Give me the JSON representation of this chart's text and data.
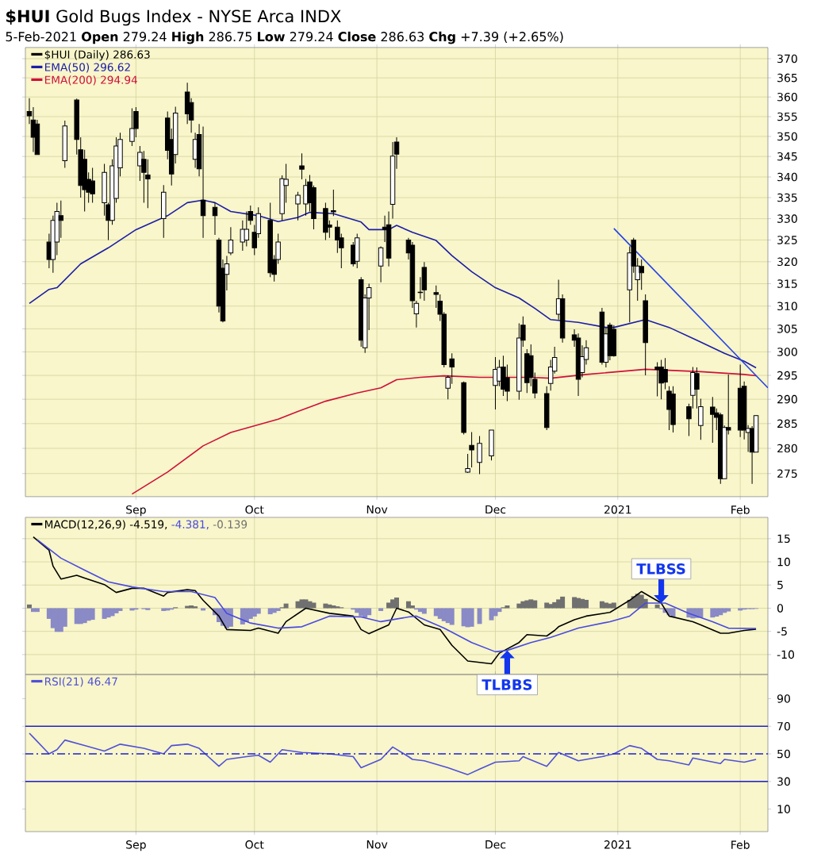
{
  "chart_data": [
    {
      "type": "candlestick",
      "title": "**$HUI** Gold Bugs Index - NYSE Arca INDX",
      "subtitle": "5-Feb-2021   **Open** 279.24 **High** 286.75 **Low** 279.24 **Close** 286.63 **Chg** +7.39 (+2.65%)",
      "xlim": [
        "2020-08-04",
        "2021-02-08"
      ],
      "xticks": [
        {
          "value": "2020-09-01",
          "label": "Sep"
        },
        {
          "value": "2020-10-01",
          "label": "Oct"
        },
        {
          "value": "2020-11-01",
          "label": "Nov"
        },
        {
          "value": "2020-12-01",
          "label": "Dec"
        },
        {
          "value": "2021-01-01",
          "label": "2021"
        },
        {
          "value": "2021-02-01",
          "label": "Feb"
        }
      ],
      "ylim": [
        270.5,
        373
      ],
      "yticks": [
        275,
        280,
        285,
        290,
        295,
        300,
        305,
        310,
        315,
        320,
        325,
        330,
        335,
        340,
        345,
        350,
        355,
        360,
        365,
        370
      ],
      "log": "y",
      "grid": true,
      "legend": "top left",
      "series": [
        {
          "name": "$HUI (Daily) 286.63",
          "color": "#000000",
          "x": [
            "2020-08-05",
            "2020-08-06",
            "2020-08-07",
            "2020-08-10",
            "2020-08-11",
            "2020-08-12",
            "2020-08-13",
            "2020-08-14",
            "2020-08-17",
            "2020-08-18",
            "2020-08-19",
            "2020-08-20",
            "2020-08-21",
            "2020-08-24",
            "2020-08-25",
            "2020-08-26",
            "2020-08-27",
            "2020-08-28",
            "2020-08-31",
            "2020-09-01",
            "2020-09-02",
            "2020-09-03",
            "2020-09-04",
            "2020-09-08",
            "2020-09-09",
            "2020-09-10",
            "2020-09-11",
            "2020-09-14",
            "2020-09-15",
            "2020-09-16",
            "2020-09-17",
            "2020-09-18",
            "2020-09-21",
            "2020-09-22",
            "2020-09-23",
            "2020-09-24",
            "2020-09-25",
            "2020-09-28",
            "2020-09-29",
            "2020-09-30",
            "2020-10-01",
            "2020-10-02",
            "2020-10-05",
            "2020-10-06",
            "2020-10-07",
            "2020-10-08",
            "2020-10-09",
            "2020-10-12",
            "2020-10-13",
            "2020-10-14",
            "2020-10-15",
            "2020-10-16",
            "2020-10-19",
            "2020-10-20",
            "2020-10-21",
            "2020-10-22",
            "2020-10-23",
            "2020-10-26",
            "2020-10-27",
            "2020-10-28",
            "2020-10-29",
            "2020-10-30",
            "2020-11-02",
            "2020-11-03",
            "2020-11-04",
            "2020-11-05",
            "2020-11-06",
            "2020-11-09",
            "2020-11-10",
            "2020-11-11",
            "2020-11-12",
            "2020-11-13",
            "2020-11-16",
            "2020-11-17",
            "2020-11-18",
            "2020-11-19",
            "2020-11-20",
            "2020-11-23",
            "2020-11-24",
            "2020-11-25",
            "2020-11-27",
            "2020-11-30",
            "2020-12-01",
            "2020-12-02",
            "2020-12-03",
            "2020-12-04",
            "2020-12-07",
            "2020-12-08",
            "2020-12-09",
            "2020-12-10",
            "2020-12-11",
            "2020-12-14",
            "2020-12-15",
            "2020-12-16",
            "2020-12-17",
            "2020-12-18",
            "2020-12-21",
            "2020-12-22",
            "2020-12-23",
            "2020-12-24",
            "2020-12-28",
            "2020-12-29",
            "2020-12-30",
            "2020-12-31",
            "2021-01-04",
            "2021-01-05",
            "2021-01-06",
            "2021-01-07",
            "2021-01-08",
            "2021-01-11",
            "2021-01-12",
            "2021-01-13",
            "2021-01-14",
            "2021-01-15",
            "2021-01-19",
            "2021-01-20",
            "2021-01-21",
            "2021-01-22",
            "2021-01-25",
            "2021-01-26",
            "2021-01-27",
            "2021-01-28",
            "2021-01-29",
            "2021-02-01",
            "2021-02-02",
            "2021-02-03",
            "2021-02-04",
            "2021-02-05"
          ],
          "ohlc": [
            [
              356.3,
              359.7,
              353.1,
              355.2
            ],
            [
              354.1,
              357.4,
              346.1,
              349.8
            ],
            [
              353.1,
              354.2,
              345.5,
              345.5
            ],
            [
              324.5,
              326.5,
              318.5,
              320.5
            ],
            [
              320.5,
              330.7,
              317.5,
              329.6
            ],
            [
              324.5,
              333.8,
              321.5,
              331.7
            ],
            [
              330.7,
              334.3,
              325.5,
              329.6
            ],
            [
              344.0,
              354.0,
              342.2,
              352.6
            ],
            [
              359.2,
              359.6,
              345.5,
              349.2
            ],
            [
              346.7,
              349.8,
              335.0,
              337.9
            ],
            [
              344.3,
              346.7,
              331.7,
              336.9
            ],
            [
              339.4,
              341.1,
              333.8,
              336.3
            ],
            [
              339.0,
              342.2,
              333.8,
              335.9
            ],
            [
              333.8,
              343.2,
              330.7,
              341.1
            ],
            [
              333.3,
              333.8,
              325.0,
              329.6
            ],
            [
              329.6,
              344.3,
              328.6,
              342.7
            ],
            [
              334.8,
              349.8,
              333.8,
              347.6
            ],
            [
              342.2,
              350.9,
              340.1,
              349.2
            ],
            [
              348.7,
              357.1,
              347.6,
              352.0
            ],
            [
              356.3,
              357.4,
              349.8,
              352.0
            ],
            [
              342.7,
              347.6,
              339.0,
              346.0
            ],
            [
              344.3,
              346.4,
              333.8,
              341.1
            ],
            [
              340.5,
              344.3,
              332.5,
              339.5
            ],
            [
              330.0,
              338.0,
              325.5,
              336.3
            ],
            [
              354.6,
              356.3,
              344.3,
              346.5
            ],
            [
              349.2,
              352.0,
              337.9,
              340.7
            ],
            [
              345.5,
              357.5,
              343.3,
              355.9
            ],
            [
              361.3,
              363.7,
              353.1,
              355.7
            ],
            [
              358.6,
              359.7,
              350.9,
              354.1
            ],
            [
              344.3,
              350.9,
              342.2,
              349.2
            ],
            [
              350.5,
              353.1,
              340.1,
              342.0
            ],
            [
              334.4,
              352.5,
              325.5,
              330.7
            ],
            [
              332.7,
              333.8,
              326.2,
              330.7
            ],
            [
              325.0,
              325.5,
              308.6,
              310.0
            ],
            [
              318.5,
              320.5,
              306.4,
              306.7
            ],
            [
              317.1,
              321.3,
              313.5,
              319.5
            ],
            [
              322.0,
              328.0,
              321.5,
              325.0
            ],
            [
              324.5,
              329.6,
              322.5,
              327.5
            ],
            [
              325.0,
              331.7,
              323.5,
              327.5
            ],
            [
              331.7,
              333.1,
              328.6,
              329.6
            ],
            [
              326.8,
              328.5,
              321.5,
              323.2
            ],
            [
              326.5,
              332.7,
              325.5,
              331.2
            ],
            [
              329.6,
              333.8,
              316.5,
              317.5
            ],
            [
              320.5,
              321.5,
              315.5,
              317.1
            ],
            [
              320.5,
              326.5,
              319.5,
              324.5
            ],
            [
              331.2,
              340.4,
              329.6,
              339.6
            ],
            [
              337.9,
              343.2,
              333.8,
              339.4
            ],
            [
              333.5,
              336.4,
              329.6,
              335.6
            ],
            [
              342.7,
              345.8,
              339.4,
              341.9
            ],
            [
              333.5,
              339.5,
              330.7,
              337.9
            ],
            [
              338.8,
              340.5,
              331.7,
              333.8
            ],
            [
              337.4,
              337.9,
              327.5,
              330.0
            ],
            [
              332.4,
              333.8,
              325.0,
              326.8
            ],
            [
              328.5,
              329.6,
              325.5,
              328.0
            ],
            [
              331.9,
              336.9,
              330.6,
              331.6
            ],
            [
              328.0,
              329.6,
              322.0,
              325.0
            ],
            [
              325.5,
              326.5,
              318.5,
              323.2
            ],
            [
              323.8,
              324.5,
              318.9,
              319.5
            ],
            [
              320.1,
              326.5,
              318.5,
              325.5
            ],
            [
              315.9,
              316.5,
              301.1,
              302.5
            ],
            [
              300.9,
              312.6,
              299.8,
              311.8
            ],
            [
              311.8,
              315.0,
              304.7,
              314.1
            ],
            [
              319.0,
              323.5,
              315.3,
              323.2
            ],
            [
              328.0,
              330.7,
              324.5,
              327.5
            ],
            [
              328.6,
              331.7,
              318.9,
              320.8
            ],
            [
              333.4,
              348.6,
              330.0,
              345.1
            ],
            [
              348.6,
              349.8,
              342.0,
              345.6
            ],
            [
              325.0,
              325.5,
              320.5,
              322.0
            ],
            [
              323.8,
              324.5,
              309.6,
              311.2
            ],
            [
              308.3,
              311.2,
              305.3,
              310.6
            ],
            [
              313.0,
              316.5,
              311.6,
              313.1
            ],
            [
              318.7,
              319.9,
              311.2,
              313.6
            ],
            [
              313.0,
              314.6,
              309.6,
              312.6
            ],
            [
              311.1,
              312.6,
              306.7,
              308.2
            ],
            [
              308.2,
              308.7,
              296.7,
              297.3
            ],
            [
              292.3,
              295.0,
              290.0,
              294.6
            ],
            [
              298.5,
              299.7,
              293.2,
              296.8
            ],
            [
              293.5,
              293.7,
              282.8,
              283.2
            ],
            [
              275.3,
              278.9,
              275.1,
              276.0
            ],
            [
              280.6,
              283.3,
              276.2,
              279.7
            ],
            [
              277.2,
              282.5,
              274.9,
              281.0
            ],
            [
              278.5,
              283.7,
              277.6,
              283.7
            ],
            [
              292.9,
              298.9,
              287.9,
              296.3
            ],
            [
              293.8,
              298.3,
              292.7,
              296.7
            ],
            [
              296.8,
              299.2,
              290.7,
              292.1
            ],
            [
              294.5,
              297.3,
              289.6,
              291.7
            ],
            [
              291.7,
              306.2,
              289.9,
              303.0
            ],
            [
              305.8,
              307.7,
              301.1,
              302.5
            ],
            [
              299.6,
              300.6,
              291.3,
              293.5
            ],
            [
              299.2,
              301.6,
              292.7,
              294.6
            ],
            [
              294.2,
              295.6,
              290.2,
              291.3
            ],
            [
              291.2,
              292.7,
              283.7,
              284.2
            ],
            [
              293.3,
              298.3,
              291.8,
              296.8
            ],
            [
              295.9,
              301.1,
              295.4,
              298.8
            ],
            [
              308.2,
              315.9,
              307.0,
              311.6
            ],
            [
              311.6,
              312.6,
              302.0,
              303.0
            ],
            [
              303.7,
              304.9,
              301.1,
              302.5
            ],
            [
              303.0,
              304.0,
              290.7,
              294.2
            ],
            [
              295.6,
              301.4,
              294.6,
              299.0
            ],
            [
              298.4,
              302.5,
              297.3,
              300.9
            ],
            [
              308.7,
              309.6,
              297.3,
              297.8
            ],
            [
              297.8,
              305.3,
              296.7,
              303.9
            ],
            [
              305.8,
              306.3,
              298.2,
              299.2
            ],
            [
              304.9,
              305.8,
              299.0,
              299.2
            ],
            [
              313.6,
              323.5,
              306.4,
              322.0
            ],
            [
              325.0,
              325.5,
              317.5,
              319.0
            ],
            [
              315.9,
              320.8,
              311.2,
              319.0
            ],
            [
              318.9,
              320.5,
              313.6,
              317.5
            ],
            [
              311.2,
              312.6,
              295.0,
              302.0
            ],
            [
              296.8,
              297.8,
              290.6,
              296.3
            ],
            [
              296.8,
              298.3,
              290.0,
              293.4
            ],
            [
              296.3,
              298.7,
              292.1,
              293.6
            ],
            [
              291.7,
              292.7,
              283.7,
              287.9
            ],
            [
              291.1,
              292.7,
              283.2,
              284.8
            ],
            [
              288.5,
              289.1,
              282.5,
              286.0
            ],
            [
              290.8,
              296.8,
              288.1,
              295.6
            ],
            [
              295.4,
              296.7,
              288.1,
              292.1
            ],
            [
              284.6,
              290.1,
              281.7,
              288.5
            ],
            [
              288.4,
              290.5,
              281.1,
              286.9
            ],
            [
              287.2,
              288.1,
              283.7,
              286.3
            ],
            [
              286.8,
              287.2,
              273.0,
              274.0
            ],
            [
              274.0,
              284.6,
              274.0,
              284.2
            ],
            [
              284.2,
              295.2,
              282.8,
              283.7
            ],
            [
              292.3,
              297.3,
              282.3,
              283.7
            ],
            [
              292.7,
              293.7,
              281.8,
              283.7
            ],
            [
              283.2,
              284.7,
              279.3,
              284.0
            ],
            [
              284.0,
              284.5,
              273.0,
              279.24
            ],
            [
              279.24,
              286.75,
              279.24,
              286.63
            ]
          ]
        },
        {
          "type": "line",
          "name": "EMA(50) 296.62",
          "color": "#1c1ca8",
          "x": [
            "2020-08-05",
            "2020-08-10",
            "2020-08-12",
            "2020-08-18",
            "2020-08-25",
            "2020-09-01",
            "2020-09-09",
            "2020-09-14",
            "2020-09-18",
            "2020-09-21",
            "2020-09-25",
            "2020-10-02",
            "2020-10-07",
            "2020-10-12",
            "2020-10-15",
            "2020-10-21",
            "2020-10-28",
            "2020-10-30",
            "2020-11-04",
            "2020-11-06",
            "2020-11-10",
            "2020-11-16",
            "2020-11-20",
            "2020-11-25",
            "2020-12-01",
            "2020-12-07",
            "2020-12-11",
            "2020-12-15",
            "2020-12-22",
            "2020-12-29",
            "2020-12-31",
            "2021-01-08",
            "2021-01-14",
            "2021-01-21",
            "2021-01-28",
            "2021-02-02",
            "2021-02-05"
          ],
          "values": [
            310.6,
            313.7,
            314.1,
            319.5,
            323.2,
            327.4,
            330.7,
            333.8,
            334.4,
            333.8,
            331.7,
            330.7,
            329.3,
            330.3,
            331.5,
            331.2,
            329.2,
            327.4,
            327.4,
            328.4,
            326.8,
            324.9,
            321.4,
            317.7,
            314.1,
            311.8,
            309.5,
            307.0,
            306.4,
            305.3,
            305.3,
            307.0,
            305.3,
            302.5,
            299.7,
            298.0,
            296.62
          ]
        },
        {
          "type": "line",
          "name": "EMA(200) 294.94",
          "color": "#d0103a",
          "x": [
            "2020-08-31",
            "2020-09-09",
            "2020-09-18",
            "2020-09-25",
            "2020-10-07",
            "2020-10-12",
            "2020-10-19",
            "2020-10-27",
            "2020-11-02",
            "2020-11-06",
            "2020-11-12",
            "2020-11-18",
            "2020-11-27",
            "2020-12-04",
            "2020-12-10",
            "2020-12-15",
            "2020-12-24",
            "2021-01-08",
            "2021-01-22",
            "2021-02-02",
            "2021-02-05"
          ],
          "values": [
            271.0,
            275.3,
            280.5,
            283.2,
            285.9,
            287.5,
            289.6,
            291.3,
            292.4,
            294.1,
            294.6,
            294.9,
            294.6,
            294.6,
            294.6,
            294.4,
            295.2,
            296.3,
            295.8,
            295.2,
            294.94
          ]
        },
        {
          "type": "line",
          "color": "#2442e6",
          "x": [
            "2020-12-31",
            "2021-02-08"
          ],
          "values": [
            327.7,
            292.4
          ]
        }
      ]
    },
    {
      "type": "line",
      "xlim": [
        "2020-08-04",
        "2021-02-08"
      ],
      "xticks": [
        {
          "value": "2020-09-01",
          "label": null
        },
        {
          "value": "2020-10-01",
          "label": null
        },
        {
          "value": "2020-11-01",
          "label": null
        },
        {
          "value": "2020-12-01",
          "label": null
        },
        {
          "value": "2021-01-01",
          "label": null
        },
        {
          "value": "2021-02-01",
          "label": null
        }
      ],
      "ylim": [
        -14.3,
        19.6
      ],
      "yticks": [
        -10,
        -5,
        0,
        5,
        10,
        15
      ],
      "tick_labels": "y",
      "grid": true,
      "legend": "top left",
      "series": [
        {
          "name": "MACD(12,26,9) -4.519,",
          "color": "#000000",
          "x": [
            "2020-08-06",
            "2020-08-10",
            "2020-08-11",
            "2020-08-13",
            "2020-08-17",
            "2020-08-19",
            "2020-08-24",
            "2020-08-27",
            "2020-08-31",
            "2020-09-03",
            "2020-09-08",
            "2020-09-09",
            "2020-09-14",
            "2020-09-16",
            "2020-09-18",
            "2020-09-22",
            "2020-09-24",
            "2020-09-30",
            "2020-10-02",
            "2020-10-07",
            "2020-10-09",
            "2020-10-14",
            "2020-10-20",
            "2020-10-26",
            "2020-10-28",
            "2020-10-30",
            "2020-11-04",
            "2020-11-06",
            "2020-11-09",
            "2020-11-13",
            "2020-11-17",
            "2020-11-20",
            "2020-11-24",
            "2020-11-30",
            "2020-12-02",
            "2020-12-07",
            "2020-12-09",
            "2020-12-14",
            "2020-12-16",
            "2020-12-17",
            "2020-12-21",
            "2020-12-24",
            "2020-12-30",
            "2021-01-04",
            "2021-01-07",
            "2021-01-12",
            "2021-01-14",
            "2021-01-20",
            "2021-01-22",
            "2021-01-27",
            "2021-01-29",
            "2021-02-02",
            "2021-02-05"
          ],
          "values": [
            15.4,
            12.5,
            9.1,
            6.3,
            7.1,
            6.5,
            5.1,
            3.4,
            4.3,
            4.3,
            2.6,
            3.4,
            4.0,
            3.8,
            1.7,
            -1.7,
            -4.6,
            -4.8,
            -4.3,
            -5.4,
            -2.9,
            0.0,
            -1.1,
            -1.7,
            -4.6,
            -5.5,
            -3.6,
            0.0,
            -0.8,
            -3.6,
            -4.6,
            -8.0,
            -11.4,
            -12.0,
            -9.7,
            -7.4,
            -5.7,
            -6.0,
            -4.8,
            -4.0,
            -2.5,
            -1.7,
            -0.9,
            1.7,
            3.6,
            1.1,
            -1.7,
            -2.9,
            -3.6,
            -5.4,
            -5.4,
            -4.8,
            -4.519
          ]
        },
        {
          "name": "-4.381,",
          "color": "#4a4ae0",
          "x": [
            "2020-08-07",
            "2020-08-13",
            "2020-08-19",
            "2020-08-25",
            "2020-08-31",
            "2020-09-08",
            "2020-09-15",
            "2020-09-21",
            "2020-09-24",
            "2020-09-30",
            "2020-10-07",
            "2020-10-13",
            "2020-10-20",
            "2020-10-28",
            "2020-11-02",
            "2020-11-09",
            "2020-11-11",
            "2020-11-18",
            "2020-11-25",
            "2020-12-01",
            "2020-12-04",
            "2020-12-10",
            "2020-12-15",
            "2020-12-22",
            "2020-12-30",
            "2021-01-04",
            "2021-01-08",
            "2021-01-13",
            "2021-01-19",
            "2021-01-25",
            "2021-01-29",
            "2021-02-05"
          ],
          "values": [
            14.8,
            10.8,
            8.2,
            5.7,
            4.6,
            3.6,
            3.6,
            2.3,
            -1.1,
            -3.2,
            -4.3,
            -4.0,
            -1.7,
            -1.9,
            -2.9,
            -1.9,
            -1.7,
            -4.3,
            -7.4,
            -9.4,
            -9.1,
            -7.4,
            -6.3,
            -4.3,
            -2.9,
            -1.7,
            1.1,
            1.1,
            -1.1,
            -2.9,
            -4.3,
            -4.381
          ]
        },
        {
          "type": "bar",
          "name": "-0.139",
          "color": "#707070",
          "x": [
            "2020-08-05",
            "2020-08-06",
            "2020-08-07",
            "2020-08-10",
            "2020-08-11",
            "2020-08-12",
            "2020-08-13",
            "2020-08-14",
            "2020-08-17",
            "2020-08-18",
            "2020-08-19",
            "2020-08-20",
            "2020-08-21",
            "2020-08-24",
            "2020-08-25",
            "2020-08-26",
            "2020-08-27",
            "2020-08-28",
            "2020-08-31",
            "2020-09-01",
            "2020-09-02",
            "2020-09-03",
            "2020-09-04",
            "2020-09-08",
            "2020-09-09",
            "2020-09-10",
            "2020-09-11",
            "2020-09-14",
            "2020-09-15",
            "2020-09-16",
            "2020-09-17",
            "2020-09-18",
            "2020-09-21",
            "2020-09-22",
            "2020-09-23",
            "2020-09-24",
            "2020-09-25",
            "2020-09-28",
            "2020-09-29",
            "2020-09-30",
            "2020-10-01",
            "2020-10-02",
            "2020-10-05",
            "2020-10-06",
            "2020-10-07",
            "2020-10-08",
            "2020-10-09",
            "2020-10-12",
            "2020-10-13",
            "2020-10-14",
            "2020-10-15",
            "2020-10-16",
            "2020-10-19",
            "2020-10-20",
            "2020-10-21",
            "2020-10-22",
            "2020-10-23",
            "2020-10-26",
            "2020-10-27",
            "2020-10-28",
            "2020-10-29",
            "2020-10-30",
            "2020-11-02",
            "2020-11-03",
            "2020-11-04",
            "2020-11-05",
            "2020-11-06",
            "2020-11-09",
            "2020-11-10",
            "2020-11-11",
            "2020-11-12",
            "2020-11-13",
            "2020-11-16",
            "2020-11-17",
            "2020-11-18",
            "2020-11-19",
            "2020-11-20",
            "2020-11-23",
            "2020-11-24",
            "2020-11-25",
            "2020-11-27",
            "2020-11-30",
            "2020-12-01",
            "2020-12-02",
            "2020-12-03",
            "2020-12-04",
            "2020-12-07",
            "2020-12-08",
            "2020-12-09",
            "2020-12-10",
            "2020-12-11",
            "2020-12-14",
            "2020-12-15",
            "2020-12-16",
            "2020-12-17",
            "2020-12-18",
            "2020-12-21",
            "2020-12-22",
            "2020-12-23",
            "2020-12-24",
            "2020-12-28",
            "2020-12-29",
            "2020-12-30",
            "2020-12-31",
            "2021-01-04",
            "2021-01-05",
            "2021-01-06",
            "2021-01-07",
            "2021-01-08",
            "2021-01-11",
            "2021-01-12",
            "2021-01-13",
            "2021-01-14",
            "2021-01-15",
            "2021-01-19",
            "2021-01-20",
            "2021-01-21",
            "2021-01-22",
            "2021-01-25",
            "2021-01-26",
            "2021-01-27",
            "2021-01-28",
            "2021-01-29",
            "2021-02-01",
            "2021-02-02",
            "2021-02-03",
            "2021-02-04",
            "2021-02-05"
          ],
          "values": [
            0.8,
            -0.8,
            -0.8,
            -2.3,
            -4.3,
            -5.1,
            -5.1,
            -4.0,
            -3.4,
            -3.4,
            -3.2,
            -2.7,
            -2.5,
            -2.3,
            -2.0,
            -1.7,
            -1.1,
            -0.6,
            -0.5,
            -0.3,
            null,
            -0.2,
            -0.4,
            -0.6,
            -0.5,
            -0.3,
            0.2,
            0.5,
            0.6,
            0.4,
            null,
            -0.5,
            -1.5,
            -3.0,
            -3.8,
            -4.3,
            -4.0,
            -3.5,
            -3.0,
            -2.3,
            -1.8,
            -1.2,
            -1.3,
            -1.0,
            -0.6,
            0.2,
            1.0,
            1.5,
            1.9,
            1.9,
            1.5,
            1.2,
            1.0,
            0.8,
            0.6,
            0.4,
            0.2,
            -0.3,
            -1.0,
            -1.7,
            -2.0,
            -1.5,
            -0.6,
            null,
            1.2,
            1.9,
            2.3,
            1.5,
            0.6,
            -0.3,
            -0.8,
            -1.2,
            -1.7,
            -2.3,
            -2.8,
            -3.2,
            -3.6,
            -3.9,
            -4.1,
            -4.0,
            -3.4,
            -2.6,
            -1.7,
            -0.8,
            0.2,
            0.6,
            1.0,
            1.5,
            1.7,
            1.9,
            1.7,
            1.2,
            0.9,
            1.3,
            1.9,
            2.5,
            2.4,
            2.2,
            2.0,
            1.8,
            1.5,
            1.2,
            1.0,
            1.2,
            1.8,
            2.6,
            3.1,
            2.9,
            2.0,
            0.8,
            -0.2,
            -1.0,
            -1.5,
            -1.8,
            -2.0,
            -2.2,
            -2.1,
            -2.0,
            -2.0,
            -1.8,
            -1.5,
            -1.0,
            -0.7,
            -0.5,
            -0.3,
            -0.2,
            -0.2,
            -0.139
          ],
          "colors": [
            "#707070",
            "#8a8ac6",
            "#8a8ac6",
            "#8a8ac6",
            "#8a8ac6",
            "#8a8ac6",
            "#8a8ac6",
            "#8a8ac6",
            "#8a8ac6",
            "#8a8ac6",
            "#8a8ac6",
            "#8a8ac6",
            "#8a8ac6",
            "#8a8ac6",
            "#8a8ac6",
            "#8a8ac6",
            "#8a8ac6",
            "#8a8ac6",
            "#8a8ac6",
            "#8a8ac6",
            "#707070",
            "#8a8ac6",
            "#8a8ac6",
            "#8a8ac6",
            "#8a8ac6",
            "#8a8ac6",
            "#707070",
            "#707070",
            "#707070",
            "#707070",
            "#707070",
            "#8a8ac6",
            "#8a8ac6",
            "#8a8ac6",
            "#8a8ac6",
            "#8a8ac6",
            "#8a8ac6",
            "#8a8ac6",
            "#8a8ac6",
            "#8a8ac6",
            "#8a8ac6",
            "#8a8ac6",
            "#8a8ac6",
            "#8a8ac6",
            "#8a8ac6",
            "#707070",
            "#707070",
            "#707070",
            "#707070",
            "#707070",
            "#707070",
            "#707070",
            "#707070",
            "#707070",
            "#707070",
            "#707070",
            "#707070",
            "#8a8ac6",
            "#8a8ac6",
            "#8a8ac6",
            "#8a8ac6",
            "#8a8ac6",
            "#8a8ac6",
            "#707070",
            "#707070",
            "#707070",
            "#707070",
            "#707070",
            "#707070",
            "#8a8ac6",
            "#8a8ac6",
            "#8a8ac6",
            "#8a8ac6",
            "#8a8ac6",
            "#8a8ac6",
            "#8a8ac6",
            "#8a8ac6",
            "#8a8ac6",
            "#8a8ac6",
            "#8a8ac6",
            "#8a8ac6",
            "#8a8ac6",
            "#8a8ac6",
            "#8a8ac6",
            "#707070",
            "#707070",
            "#707070",
            "#707070",
            "#707070",
            "#707070",
            "#707070",
            "#707070",
            "#707070",
            "#707070",
            "#707070",
            "#707070",
            "#707070",
            "#707070",
            "#707070",
            "#707070",
            "#707070",
            "#707070",
            "#707070",
            "#707070",
            "#707070",
            "#707070",
            "#707070",
            "#707070",
            "#707070",
            "#707070",
            "#8a8ac6",
            "#8a8ac6",
            "#8a8ac6",
            "#8a8ac6",
            "#8a8ac6",
            "#8a8ac6",
            "#8a8ac6",
            "#8a8ac6",
            "#8a8ac6",
            "#8a8ac6",
            "#8a8ac6",
            "#8a8ac6",
            "#8a8ac6",
            "#8a8ac6",
            "#8a8ac6",
            "#8a8ac6",
            "#8a8ac6",
            "#8a8ac6"
          ]
        }
      ],
      "annotations": [
        {
          "text": "TLBSS",
          "x": "2021-01-12",
          "y": 1.1
        },
        {
          "text": "TLBBS",
          "x": "2020-12-04",
          "y": -9.1
        }
      ]
    },
    {
      "type": "line",
      "xlim": [
        "2020-08-04",
        "2021-02-08"
      ],
      "xticks": [
        {
          "value": "2020-09-01",
          "label": "Sep"
        },
        {
          "value": "2020-10-01",
          "label": "Oct"
        },
        {
          "value": "2020-11-01",
          "label": "Nov"
        },
        {
          "value": "2020-12-01",
          "label": "Dec"
        },
        {
          "value": "2021-01-01",
          "label": "2021"
        },
        {
          "value": "2021-02-01",
          "label": "Feb"
        }
      ],
      "ylim": [
        -6.3,
        107.5
      ],
      "yticks": [
        10,
        30,
        50,
        70,
        90
      ],
      "grid": "x",
      "legend": "top left",
      "ref_lines": [
        {
          "axis": "y",
          "value": 70,
          "color": "#2020cc"
        },
        {
          "axis": "y",
          "value": 50,
          "color": "#2020cc",
          "line_style": "dashed"
        },
        {
          "axis": "y",
          "value": 30,
          "color": "#2020cc"
        }
      ],
      "series": [
        {
          "name": "RSI(21) 46.47",
          "color": "#5050d8",
          "x": [
            "2020-08-05",
            "2020-08-06",
            "2020-08-10",
            "2020-08-12",
            "2020-08-14",
            "2020-08-19",
            "2020-08-24",
            "2020-08-28",
            "2020-09-03",
            "2020-09-08",
            "2020-09-10",
            "2020-09-14",
            "2020-09-17",
            "2020-09-22",
            "2020-09-24",
            "2020-09-29",
            "2020-10-02",
            "2020-10-05",
            "2020-10-08",
            "2020-10-13",
            "2020-10-20",
            "2020-10-26",
            "2020-10-28",
            "2020-11-02",
            "2020-11-05",
            "2020-11-09",
            "2020-11-10",
            "2020-11-13",
            "2020-11-19",
            "2020-11-24",
            "2020-11-27",
            "2020-12-01",
            "2020-12-07",
            "2020-12-08",
            "2020-12-14",
            "2020-12-17",
            "2020-12-22",
            "2020-12-28",
            "2020-12-31",
            "2021-01-04",
            "2021-01-07",
            "2021-01-11",
            "2021-01-14",
            "2021-01-19",
            "2021-01-20",
            "2021-01-27",
            "2021-01-28",
            "2021-02-02",
            "2021-02-05"
          ],
          "values": [
            65,
            62,
            50,
            53,
            60,
            56,
            52,
            57,
            54,
            50,
            56,
            57,
            54,
            41,
            46,
            48,
            49,
            44,
            53,
            51,
            50,
            48,
            40,
            46,
            55,
            48,
            46,
            45,
            40,
            35,
            39,
            44,
            45,
            48,
            41,
            51,
            45,
            48,
            50,
            56,
            54,
            46,
            45,
            42,
            47,
            43,
            46,
            44,
            46
          ]
        }
      ]
    }
  ]
}
